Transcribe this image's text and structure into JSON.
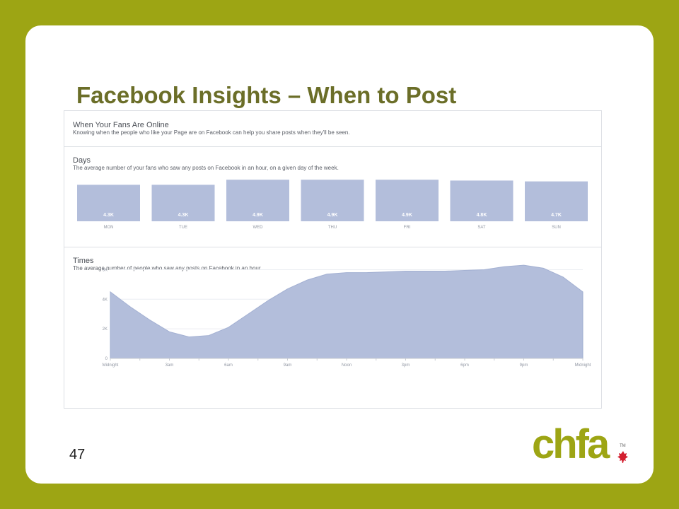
{
  "slide": {
    "title": "Facebook Insights – When to Post",
    "page_number": "47",
    "logo_text": "chfa",
    "logo_tm": "TM"
  },
  "screenshot": {
    "header": {
      "title": "When Your Fans Are Online",
      "subtitle": "Knowing when the people who like your Page are on Facebook can help you share posts when they'll be seen."
    },
    "days": {
      "title": "Days",
      "subtitle": "The average number of your fans who saw any posts on Facebook in an hour, on a given day of the week."
    },
    "times": {
      "title": "Times",
      "subtitle": "The average number of people who saw any posts on Facebook in an hour."
    }
  },
  "colors": {
    "bar": "#b3bedb",
    "area": "#b3bedb",
    "title": "#6b6e28",
    "frame": "#9da514",
    "logo_green": "#9da514",
    "leaf_red": "#d32030"
  },
  "chart_data": [
    {
      "type": "bar",
      "title": "Days",
      "categories": [
        "MON",
        "TUE",
        "WED",
        "THU",
        "FRI",
        "SAT",
        "SUN"
      ],
      "values": [
        4300,
        4300,
        4900,
        4900,
        4900,
        4800,
        4700
      ],
      "data_labels": [
        "4.3K",
        "4.3K",
        "4.9K",
        "4.9K",
        "4.9K",
        "4.8K",
        "4.7K"
      ]
    },
    {
      "type": "area",
      "title": "Times",
      "x": [
        0,
        1,
        2,
        3,
        4,
        5,
        6,
        7,
        8,
        9,
        10,
        11,
        12,
        13,
        14,
        15,
        16,
        17,
        18,
        19,
        20,
        21,
        22,
        23,
        24
      ],
      "values": [
        4500,
        3500,
        2600,
        1800,
        1450,
        1550,
        2100,
        3000,
        3900,
        4700,
        5300,
        5700,
        5800,
        5800,
        5850,
        5900,
        5900,
        5900,
        5950,
        6000,
        6200,
        6300,
        6100,
        5500,
        4500
      ],
      "x_tick_labels": [
        "Midnight",
        "3am",
        "6am",
        "9am",
        "Noon",
        "3pm",
        "6pm",
        "9pm",
        "Midnight"
      ],
      "x_tick_positions": [
        0,
        3,
        6,
        9,
        12,
        15,
        18,
        21,
        24
      ],
      "y_ticks": [
        0,
        2000,
        4000,
        6000
      ],
      "y_tick_labels": [
        "0",
        "2K",
        "4K",
        "6K"
      ],
      "ylim": [
        0,
        6500
      ]
    }
  ]
}
